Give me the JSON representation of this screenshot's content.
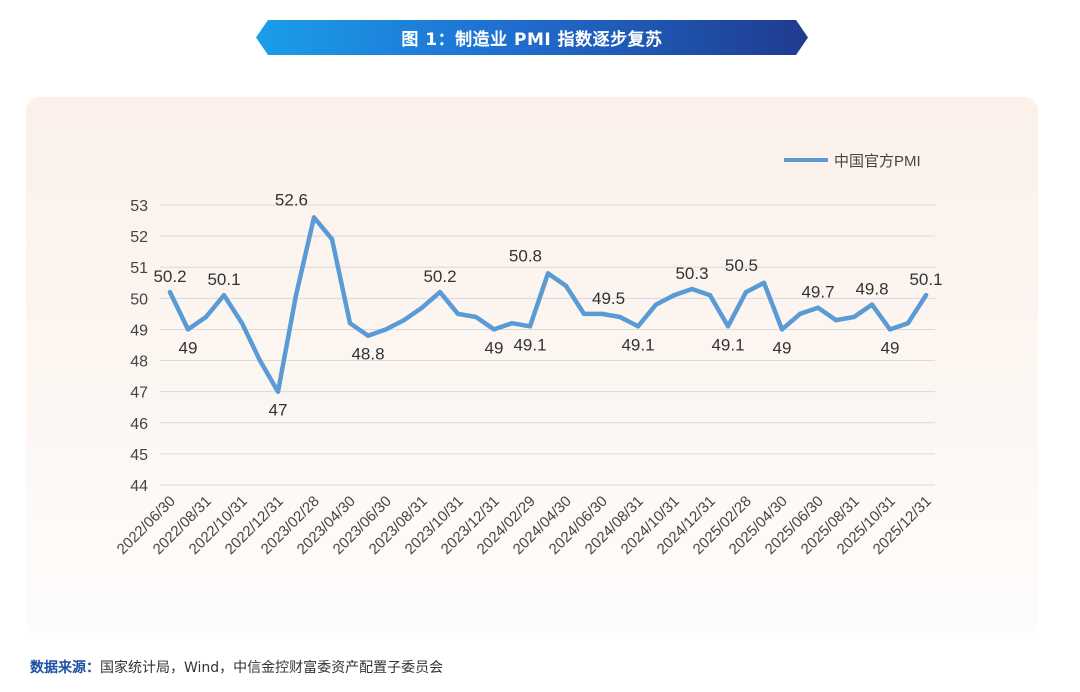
{
  "header": {
    "title": "图 1：制造业 PMI 指数逐步复苏"
  },
  "source": {
    "label": "数据来源：",
    "text": "国家统计局，Wind，中信金控财富委资产配置子委员会"
  },
  "colors": {
    "line": "#5b9bd5",
    "banner_start": "#1a9ee8",
    "banner_end": "#1f3b8f",
    "grid": "#d9d9d9"
  },
  "chart_data": {
    "type": "line",
    "title": "",
    "xlabel": "",
    "ylabel": "",
    "ylim": [
      44,
      53
    ],
    "yticks": [
      44,
      45,
      46,
      47,
      48,
      49,
      50,
      51,
      52,
      53
    ],
    "grid": true,
    "legend": "top-right",
    "x_tick_labels": [
      "2022/06/30",
      "2022/08/31",
      "2022/10/31",
      "2022/12/31",
      "2023/02/28",
      "2023/04/30",
      "2023/06/30",
      "2023/08/31",
      "2023/10/31",
      "2023/12/31",
      "2024/02/29",
      "2024/04/30",
      "2024/06/30",
      "2024/08/31",
      "2024/10/31",
      "2024/12/31",
      "2025/02/28",
      "2025/04/30",
      "2025/06/30",
      "2025/08/31",
      "2025/10/31",
      "2025/12/31"
    ],
    "series": [
      {
        "name": "中国官方PMI",
        "values": [
          50.2,
          49.0,
          49.4,
          50.1,
          49.2,
          48.0,
          47.0,
          50.1,
          52.6,
          51.9,
          49.2,
          48.8,
          49.0,
          49.3,
          49.7,
          50.2,
          49.5,
          49.4,
          49.0,
          49.2,
          49.1,
          50.8,
          50.4,
          49.5,
          49.5,
          49.4,
          49.1,
          49.8,
          50.1,
          50.3,
          50.1,
          49.1,
          50.2,
          50.5,
          49.0,
          49.5,
          49.7,
          49.3,
          49.4,
          49.8,
          49.0,
          49.2,
          50.1
        ]
      }
    ],
    "data_labels": [
      {
        "index": 0,
        "text": "50.2",
        "pos": "above"
      },
      {
        "index": 1,
        "text": "49",
        "pos": "below"
      },
      {
        "index": 3,
        "text": "50.1",
        "pos": "above"
      },
      {
        "index": 6,
        "text": "47",
        "pos": "below"
      },
      {
        "index": 8,
        "text": "52.6",
        "pos": "above-left"
      },
      {
        "index": 11,
        "text": "48.8",
        "pos": "below"
      },
      {
        "index": 15,
        "text": "50.2",
        "pos": "above"
      },
      {
        "index": 18,
        "text": "49",
        "pos": "below"
      },
      {
        "index": 20,
        "text": "49.1",
        "pos": "below"
      },
      {
        "index": 21,
        "text": "50.8",
        "pos": "above-left"
      },
      {
        "index": 23,
        "text": "49.5",
        "pos": "above-right"
      },
      {
        "index": 26,
        "text": "49.1",
        "pos": "below"
      },
      {
        "index": 29,
        "text": "50.3",
        "pos": "above"
      },
      {
        "index": 31,
        "text": "49.1",
        "pos": "below"
      },
      {
        "index": 33,
        "text": "50.5",
        "pos": "above-left"
      },
      {
        "index": 34,
        "text": "49",
        "pos": "below"
      },
      {
        "index": 36,
        "text": "49.7",
        "pos": "above"
      },
      {
        "index": 39,
        "text": "49.8",
        "pos": "above"
      },
      {
        "index": 40,
        "text": "49",
        "pos": "below"
      },
      {
        "index": 42,
        "text": "50.1",
        "pos": "above"
      }
    ]
  }
}
